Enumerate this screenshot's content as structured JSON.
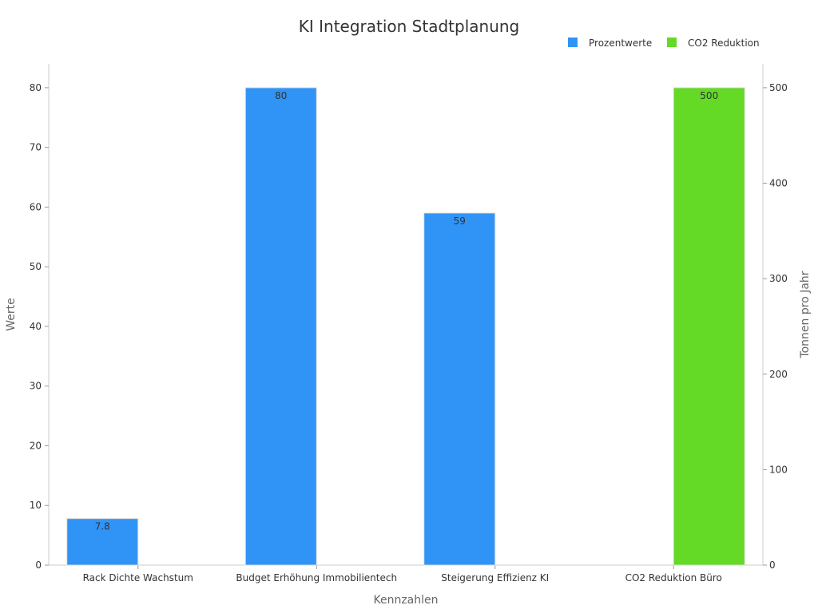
{
  "chart_data": {
    "type": "bar",
    "title": "KI Integration Stadtplanung",
    "xlabel": "Kennzahlen",
    "ylabel": "Werte",
    "y2label": "Tonnen pro Jahr",
    "categories": [
      "Rack Dichte Wachstum",
      "Budget Erhöhung Immobilientech",
      "Steigerung Effizienz KI",
      "CO2 Reduktion Büro"
    ],
    "ylim": [
      0,
      84
    ],
    "y2lim": [
      0,
      525
    ],
    "yticks": [
      0,
      10,
      20,
      30,
      40,
      50,
      60,
      70,
      80
    ],
    "y2ticks": [
      0,
      100,
      200,
      300,
      400,
      500
    ],
    "legend_position": "top-right",
    "grid": false,
    "series": [
      {
        "name": "Prozentwerte",
        "color": "#3094f7",
        "axis": "left",
        "values": [
          7.8,
          80,
          59,
          null
        ],
        "labels": [
          "7.8",
          "80",
          "59",
          ""
        ]
      },
      {
        "name": "CO2 Reduktion",
        "color": "#64d926",
        "axis": "right",
        "values": [
          null,
          null,
          null,
          500
        ],
        "labels": [
          "",
          "",
          "",
          "500"
        ]
      }
    ]
  }
}
